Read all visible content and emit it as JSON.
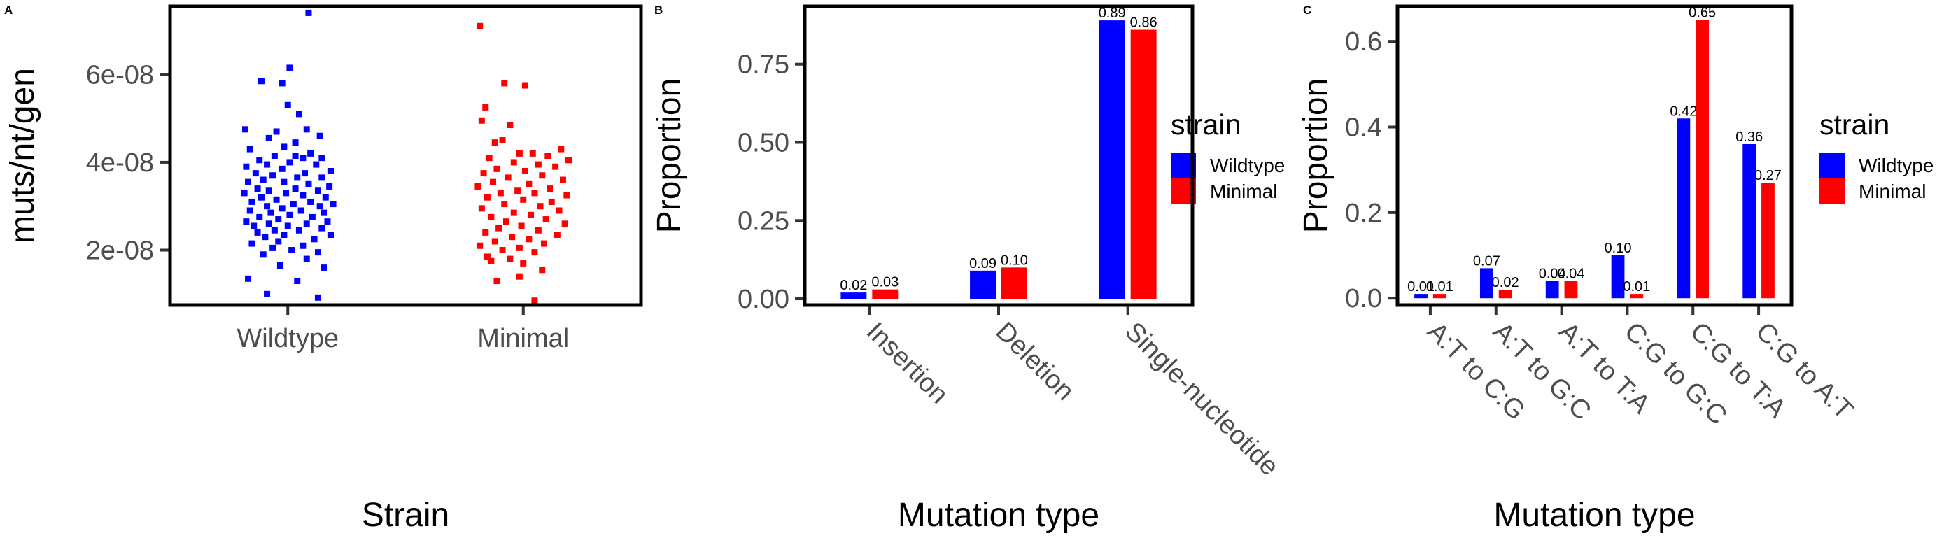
{
  "colors": {
    "Wildtype": "#0000ff",
    "Minimal": "#ff0000",
    "axis_text": "#4d4d4d",
    "frame": "#000000"
  },
  "legend": {
    "title": "strain",
    "entries": [
      "Wildtype",
      "Minimal"
    ]
  },
  "chart_data": [
    {
      "panel": "A",
      "type": "scatter",
      "title": "",
      "xlabel": "Strain",
      "ylabel": "muts/nt/gen",
      "categories": [
        "Wildtype",
        "Minimal"
      ],
      "yticks": [
        2e-08,
        4e-08,
        6e-08
      ],
      "ytick_labels": [
        "2e-08",
        "4e-08",
        "6e-08"
      ],
      "ylim": [
        7.5e-09,
        7.55e-08
      ],
      "series": [
        {
          "name": "Wildtype",
          "values": [
            7.4e-08,
            6.15e-08,
            5.85e-08,
            5.8e-08,
            5.3e-08,
            5.1e-08,
            4.75e-08,
            4.75e-08,
            4.7e-08,
            4.6e-08,
            4.55e-08,
            4.45e-08,
            4.35e-08,
            4.3e-08,
            4.2e-08,
            4.15e-08,
            4.15e-08,
            4.1e-08,
            4.1e-08,
            4.05e-08,
            4e-08,
            3.95e-08,
            3.95e-08,
            3.9e-08,
            3.85e-08,
            3.8e-08,
            3.75e-08,
            3.75e-08,
            3.7e-08,
            3.65e-08,
            3.65e-08,
            3.6e-08,
            3.55e-08,
            3.55e-08,
            3.5e-08,
            3.45e-08,
            3.4e-08,
            3.4e-08,
            3.35e-08,
            3.35e-08,
            3.3e-08,
            3.3e-08,
            3.25e-08,
            3.2e-08,
            3.2e-08,
            3.15e-08,
            3.1e-08,
            3.1e-08,
            3.05e-08,
            3.05e-08,
            3e-08,
            3e-08,
            2.95e-08,
            2.9e-08,
            2.9e-08,
            2.85e-08,
            2.85e-08,
            2.8e-08,
            2.75e-08,
            2.75e-08,
            2.7e-08,
            2.65e-08,
            2.65e-08,
            2.6e-08,
            2.6e-08,
            2.55e-08,
            2.55e-08,
            2.5e-08,
            2.45e-08,
            2.45e-08,
            2.4e-08,
            2.35e-08,
            2.35e-08,
            2.3e-08,
            2.25e-08,
            2.2e-08,
            2.15e-08,
            2.1e-08,
            2.05e-08,
            2e-08,
            1.95e-08,
            1.9e-08,
            1.8e-08,
            1.65e-08,
            1.6e-08,
            1.35e-08,
            1.3e-08,
            1e-08,
            9.2e-09
          ],
          "jitter": [
            0.72,
            0.52,
            0.22,
            0.44,
            0.5,
            0.62,
            0.05,
            0.7,
            0.38,
            0.84,
            0.3,
            0.58,
            0.46,
            0.1,
            0.74,
            0.58,
            0.36,
            0.66,
            0.86,
            0.2,
            0.52,
            0.8,
            0.28,
            0.06,
            0.44,
            0.96,
            0.68,
            0.16,
            0.34,
            0.6,
            0.86,
            0.24,
            0.08,
            0.46,
            0.72,
            0.94,
            0.18,
            0.58,
            0.3,
            0.82,
            0.04,
            0.48,
            0.66,
            0.22,
            0.9,
            0.38,
            0.12,
            0.74,
            0.56,
            0.98,
            0.28,
            0.84,
            0.44,
            0.1,
            0.64,
            0.32,
            0.88,
            0.52,
            0.2,
            0.76,
            0.4,
            0.06,
            0.92,
            0.3,
            0.7,
            0.14,
            0.5,
            0.86,
            0.36,
            0.62,
            0.18,
            0.96,
            0.46,
            0.26,
            0.78,
            0.4,
            0.12,
            0.66,
            0.34,
            0.54,
            0.82,
            0.24,
            0.7,
            0.42,
            0.88,
            0.08,
            0.6,
            0.28,
            0.82
          ]
        },
        {
          "name": "Minimal",
          "values": [
            7.1e-08,
            5.8e-08,
            5.75e-08,
            5.25e-08,
            4.95e-08,
            4.85e-08,
            4.5e-08,
            4.45e-08,
            4.3e-08,
            4.2e-08,
            4.2e-08,
            4.15e-08,
            4.1e-08,
            4.05e-08,
            4e-08,
            3.95e-08,
            3.9e-08,
            3.85e-08,
            3.8e-08,
            3.75e-08,
            3.7e-08,
            3.65e-08,
            3.6e-08,
            3.55e-08,
            3.5e-08,
            3.45e-08,
            3.4e-08,
            3.35e-08,
            3.3e-08,
            3.3e-08,
            3.25e-08,
            3.2e-08,
            3.15e-08,
            3.1e-08,
            3.05e-08,
            3e-08,
            2.95e-08,
            2.9e-08,
            2.85e-08,
            2.8e-08,
            2.75e-08,
            2.7e-08,
            2.65e-08,
            2.6e-08,
            2.55e-08,
            2.5e-08,
            2.45e-08,
            2.4e-08,
            2.35e-08,
            2.3e-08,
            2.25e-08,
            2.2e-08,
            2.15e-08,
            2.1e-08,
            2.05e-08,
            2e-08,
            1.95e-08,
            1.85e-08,
            1.8e-08,
            1.75e-08,
            1.7e-08,
            1.55e-08,
            1.4e-08,
            1.3e-08,
            8.5e-09
          ],
          "jitter": [
            0.04,
            0.3,
            0.52,
            0.1,
            0.06,
            0.36,
            0.28,
            0.2,
            0.9,
            0.46,
            0.6,
            0.76,
            0.14,
            0.98,
            0.4,
            0.66,
            0.84,
            0.22,
            0.52,
            0.08,
            0.7,
            0.34,
            0.92,
            0.18,
            0.56,
            0.02,
            0.78,
            0.44,
            0.26,
            0.62,
            0.96,
            0.12,
            0.5,
            0.8,
            0.3,
            0.68,
            0.06,
            0.88,
            0.4,
            0.58,
            0.16,
            0.74,
            0.32,
            0.94,
            0.48,
            0.24,
            0.66,
            0.1,
            0.86,
            0.38,
            0.56,
            0.2,
            0.72,
            0.04,
            0.46,
            0.28,
            0.62,
            0.12,
            0.36,
            0.16,
            0.5,
            0.7,
            0.46,
            0.22,
            0.62
          ]
        }
      ]
    },
    {
      "panel": "B",
      "type": "bar",
      "title": "",
      "xlabel": "Mutation type",
      "ylabel": "Proportion",
      "categories": [
        "Insertion",
        "Deletion",
        "Single-nucleotide"
      ],
      "yticks": [
        0,
        0.25,
        0.5,
        0.75
      ],
      "ytick_labels": [
        "0.00",
        "0.25",
        "0.50",
        "0.75"
      ],
      "ylim": [
        -0.02,
        0.935
      ],
      "series": [
        {
          "name": "Wildtype",
          "values": [
            0.02,
            0.09,
            0.89
          ],
          "labels": [
            "0.02",
            "0.09",
            "0.89"
          ]
        },
        {
          "name": "Minimal",
          "values": [
            0.03,
            0.1,
            0.86
          ],
          "labels": [
            "0.03",
            "0.10",
            "0.86"
          ]
        }
      ]
    },
    {
      "panel": "C",
      "type": "bar",
      "title": "",
      "xlabel": "Mutation type",
      "ylabel": "Proportion",
      "categories": [
        "A:T to C:G",
        "A:T to G:C",
        "A:T to T:A",
        "C:G to G:C",
        "C:G to T:A",
        "C:G to A:T"
      ],
      "yticks": [
        0,
        0.2,
        0.4,
        0.6
      ],
      "ytick_labels": [
        "0.0",
        "0.2",
        "0.4",
        "0.6"
      ],
      "ylim": [
        -0.016,
        0.682
      ],
      "series": [
        {
          "name": "Wildtype",
          "values": [
            0.01,
            0.07,
            0.04,
            0.1,
            0.42,
            0.36
          ],
          "labels": [
            "0.01",
            "0.07",
            "0.04",
            "0.10",
            "0.42",
            "0.36"
          ]
        },
        {
          "name": "Minimal",
          "values": [
            0.01,
            0.02,
            0.04,
            0.01,
            0.65,
            0.27
          ],
          "labels": [
            "0.01",
            "0.02",
            "0.04",
            "0.01",
            "0.65",
            "0.27"
          ]
        }
      ]
    }
  ]
}
